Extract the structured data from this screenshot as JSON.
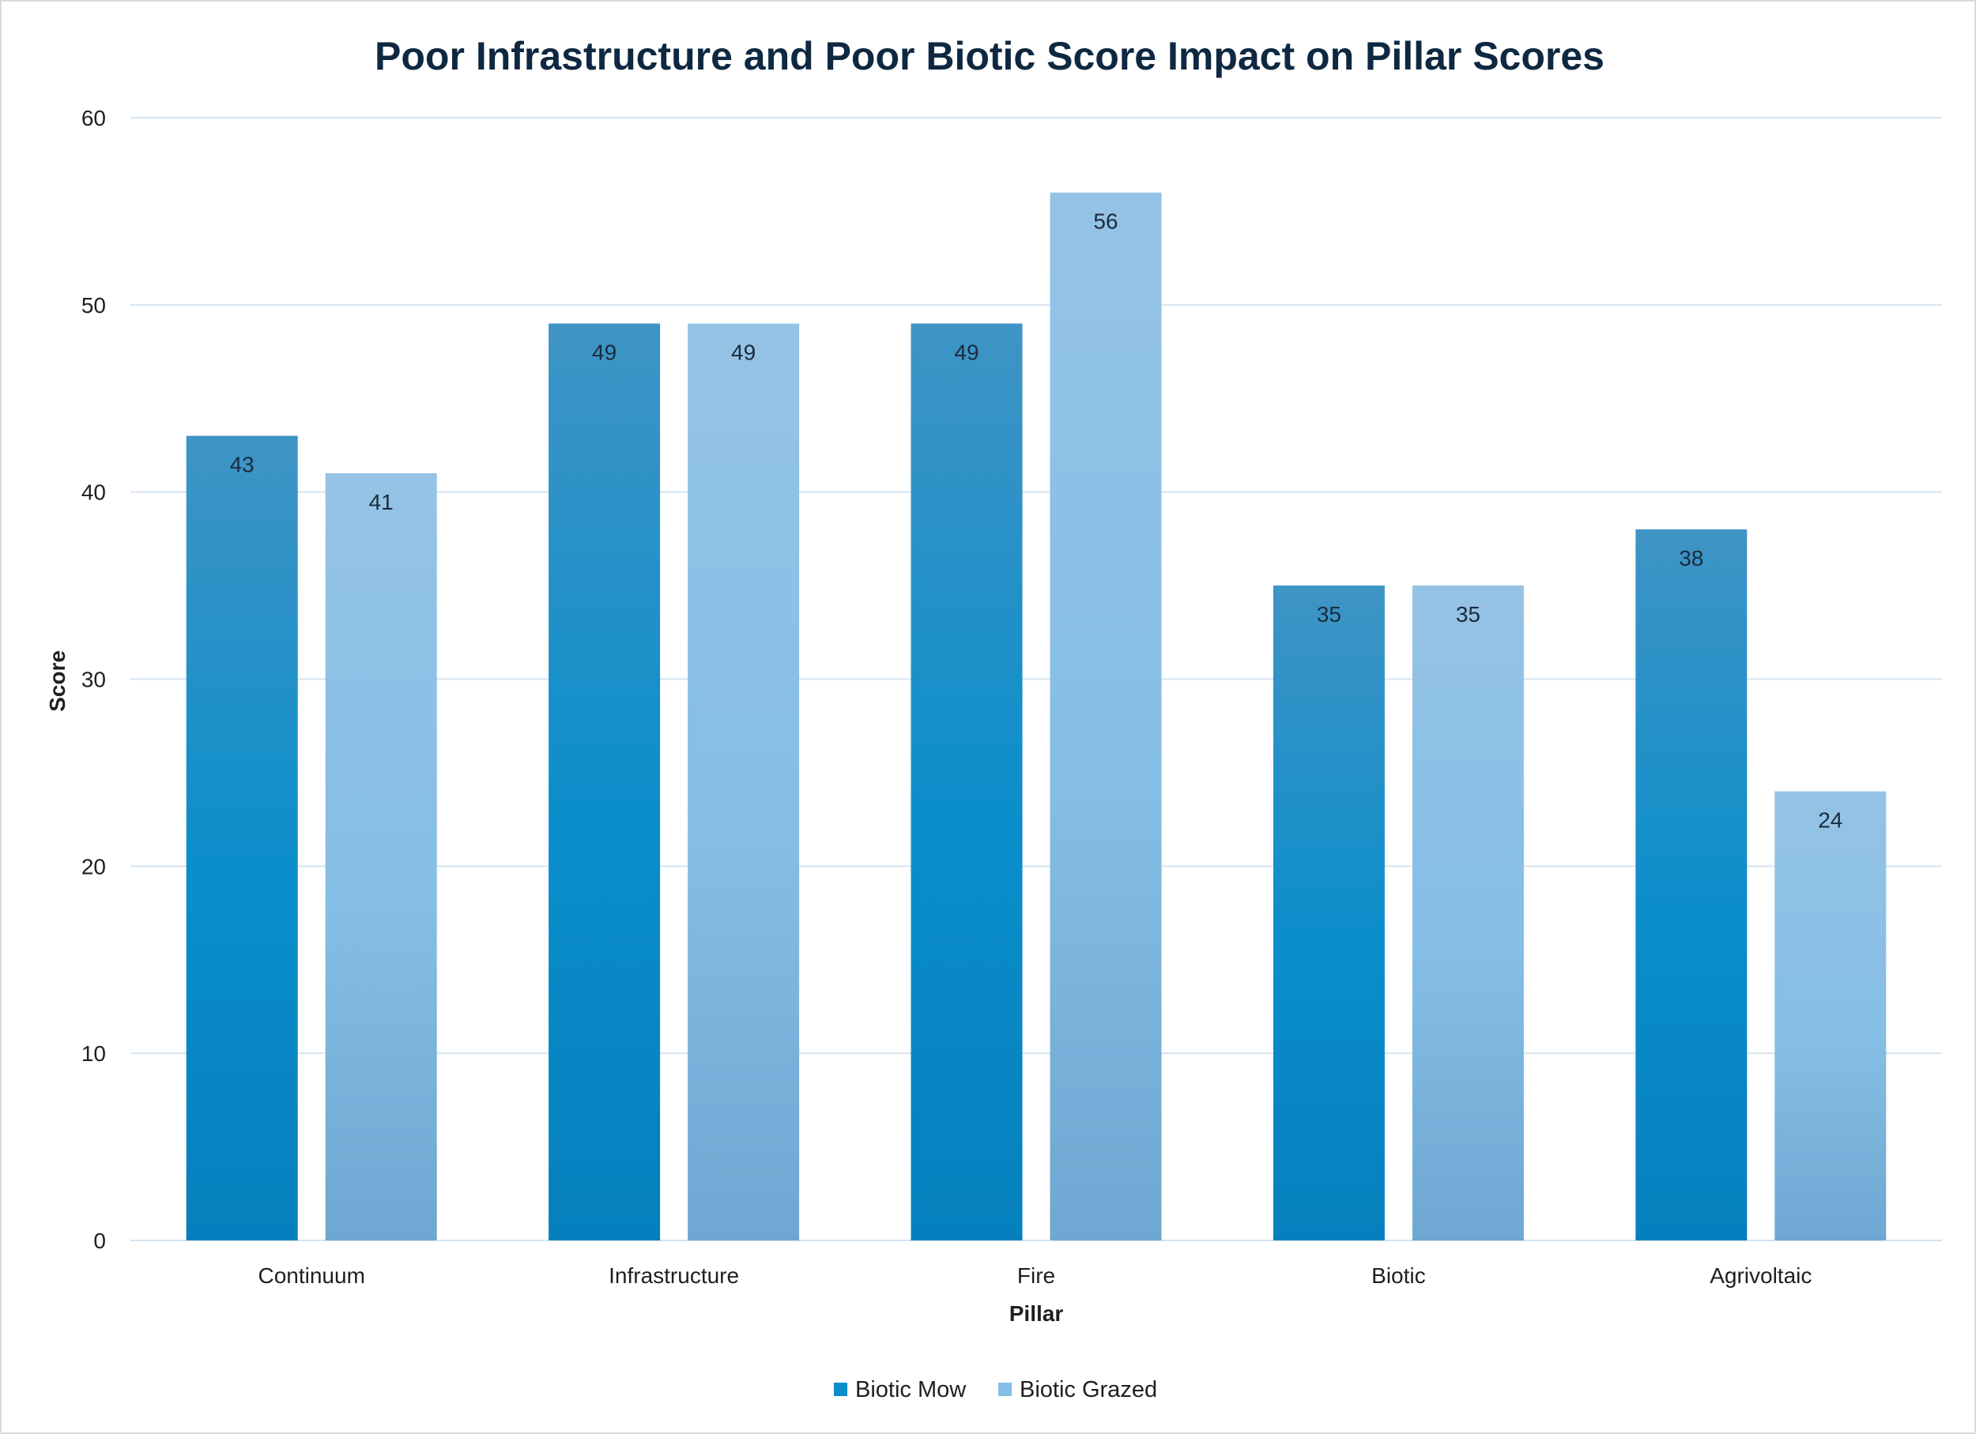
{
  "chart_data": {
    "type": "bar",
    "title": "Poor Infrastructure and Poor Biotic Score Impact on Pillar Scores",
    "xlabel": "Pillar",
    "ylabel": "Score",
    "ylim": [
      0,
      60
    ],
    "yticks": [
      0,
      10,
      20,
      30,
      40,
      50,
      60
    ],
    "categories": [
      "Continuum",
      "Infrastructure",
      "Fire",
      "Biotic",
      "Agrivoltaic"
    ],
    "series": [
      {
        "name": "Biotic Mow",
        "values": [
          43,
          49,
          49,
          35,
          38
        ],
        "color_top": "#3f94c5",
        "color_mid": "#0a8ecb",
        "color_bottom": "#0580bd"
      },
      {
        "name": "Biotic Grazed",
        "values": [
          41,
          49,
          56,
          35,
          24
        ],
        "color_top": "#95c3e6",
        "color_mid": "#85bee6",
        "color_bottom": "#6ea7d1"
      }
    ],
    "grid": true,
    "data_labels": true,
    "legend_position": "bottom"
  }
}
